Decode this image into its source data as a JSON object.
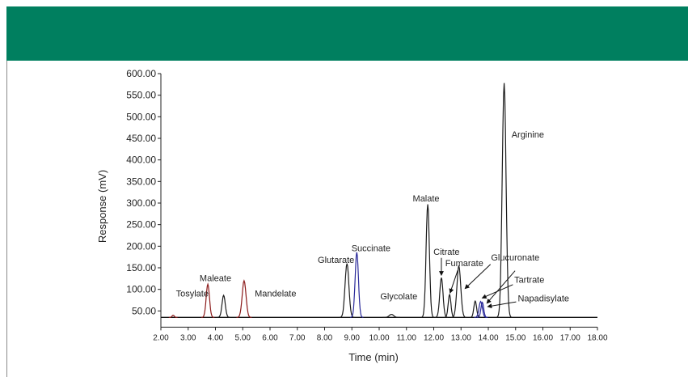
{
  "header": {
    "banner_color": "#007f5f"
  },
  "chart_data": {
    "type": "line",
    "title": "",
    "xlabel": "Time (min)",
    "ylabel": "Response (mV)",
    "xlim": [
      2.0,
      18.0
    ],
    "ylim": [
      30,
      600
    ],
    "x_ticks": [
      "2.00",
      "3.00",
      "4.00",
      "5.00",
      "6.00",
      "7.00",
      "8.00",
      "9.00",
      "10.00",
      "11.00",
      "12.00",
      "13.00",
      "14.00",
      "15.00",
      "16.00",
      "17.00",
      "18.00"
    ],
    "y_ticks": [
      "50.00",
      "100.00",
      "150.00",
      "200.00",
      "250.00",
      "300.00",
      "350.00",
      "400.00",
      "450.00",
      "500.00",
      "550.00",
      "600.00"
    ],
    "baseline": 35,
    "grid": false,
    "legend": "none",
    "series": [
      {
        "color": "#8b1a1a",
        "peaks": [
          {
            "label": "Tosylate",
            "t": 2.45,
            "h": 40,
            "w": 0.04
          },
          {
            "label": "Maleate",
            "t": 3.72,
            "h": 112,
            "w": 0.06
          },
          {
            "label": "Mandelate",
            "t": 5.05,
            "h": 120,
            "w": 0.07
          }
        ]
      },
      {
        "color": "#1c1c1c",
        "peaks": [
          {
            "label": "",
            "t": 4.3,
            "h": 86,
            "w": 0.06
          },
          {
            "label": "Glutarate",
            "t": 8.82,
            "h": 160,
            "w": 0.07
          },
          {
            "label": "Glycolate",
            "t": 10.45,
            "h": 42,
            "w": 0.08
          },
          {
            "label": "Malate",
            "t": 11.78,
            "h": 297,
            "w": 0.06
          },
          {
            "label": "Citrate",
            "t": 12.28,
            "h": 127,
            "w": 0.06
          },
          {
            "label": "",
            "t": 12.58,
            "h": 88,
            "w": 0.05
          },
          {
            "label": "Fumarate",
            "t": 12.92,
            "h": 155,
            "w": 0.07
          },
          {
            "label": "Tartrate",
            "t": 13.52,
            "h": 73,
            "w": 0.05
          },
          {
            "label": "Arginine",
            "t": 14.58,
            "h": 578,
            "w": 0.07
          }
        ]
      },
      {
        "color": "#2a2a9a",
        "peaks": [
          {
            "label": "Succinate",
            "t": 9.18,
            "h": 186,
            "w": 0.06
          },
          {
            "label": "Glucuronate",
            "t": 13.72,
            "h": 72,
            "w": 0.06
          },
          {
            "label": "Napadisylate",
            "t": 13.78,
            "h": 70,
            "w": 0.05
          }
        ]
      }
    ],
    "annotations": [
      {
        "text": "Tosylate",
        "at_x": 3.15,
        "at_y": 83,
        "align": "middle"
      },
      {
        "text": "Maleate",
        "at_x": 4.0,
        "at_y": 119,
        "align": "middle"
      },
      {
        "text": "Mandelate",
        "at_x": 6.2,
        "at_y": 83,
        "align": "middle"
      },
      {
        "text": "Glutarate",
        "at_x": 8.42,
        "at_y": 161,
        "align": "middle"
      },
      {
        "text": "Succinate",
        "at_x": 9.7,
        "at_y": 188,
        "align": "middle"
      },
      {
        "text": "Glycolate",
        "at_x": 10.72,
        "at_y": 77,
        "align": "middle"
      },
      {
        "text": "Malate",
        "at_x": 11.72,
        "at_y": 304,
        "align": "middle"
      },
      {
        "text": "Citrate",
        "at_x": 12.47,
        "at_y": 180,
        "align": "middle"
      },
      {
        "text": "Fumarate",
        "at_x": 13.12,
        "at_y": 154,
        "align": "middle"
      },
      {
        "text": "Glucuronate",
        "at_x": 14.1,
        "at_y": 167,
        "align": "start"
      },
      {
        "text": "Tartrate",
        "at_x": 14.95,
        "at_y": 115,
        "align": "start"
      },
      {
        "text": "Napadisylate",
        "at_x": 15.08,
        "at_y": 72,
        "align": "start"
      },
      {
        "text": "Arginine",
        "at_x": 14.85,
        "at_y": 452,
        "align": "start"
      }
    ],
    "arrows": [
      {
        "from": [
          12.28,
          173
        ],
        "to": [
          12.28,
          133
        ]
      },
      {
        "from": [
          12.88,
          144
        ],
        "to": [
          12.6,
          92
        ]
      },
      {
        "from": [
          14.08,
          158
        ],
        "to": [
          13.15,
          102
        ]
      },
      {
        "from": [
          14.9,
          111
        ],
        "to": [
          13.78,
          80
        ]
      },
      {
        "from": [
          15.02,
          71
        ],
        "to": [
          13.98,
          60
        ]
      },
      {
        "from": [
          14.98,
          143
        ],
        "to": [
          13.95,
          68
        ]
      }
    ]
  }
}
